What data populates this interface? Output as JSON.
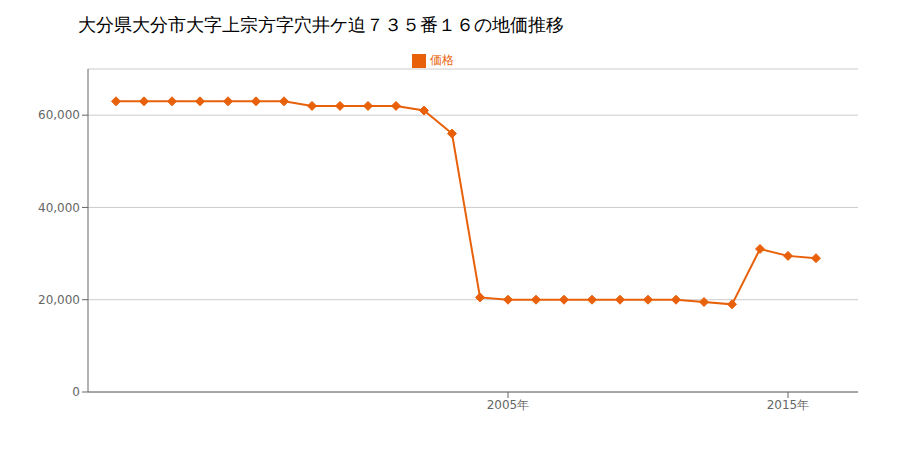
{
  "chart_data": {
    "type": "line",
    "title": "大分県大分市大字上宗方字穴井ケ迫７３５番１６の地価推移",
    "x": [
      1991,
      1992,
      1993,
      1994,
      1995,
      1996,
      1997,
      1998,
      1999,
      2000,
      2001,
      2002,
      2003,
      2004,
      2005,
      2006,
      2007,
      2008,
      2009,
      2010,
      2011,
      2012,
      2013,
      2014,
      2015,
      2016
    ],
    "series": [
      {
        "name": "価格",
        "color": "#E8610A",
        "marker": "diamond",
        "values": [
          63000,
          63000,
          63000,
          63000,
          63000,
          63000,
          63000,
          62000,
          62000,
          62000,
          62000,
          61000,
          56000,
          20500,
          20000,
          20000,
          20000,
          20000,
          20000,
          20000,
          20000,
          19500,
          19000,
          31000,
          29500,
          29000
        ]
      }
    ],
    "xlim": [
      1990,
      2017.5
    ],
    "xticks": [
      {
        "value": 2005,
        "label": "2005年"
      },
      {
        "value": 2015,
        "label": "2015年"
      }
    ],
    "ylim": [
      0,
      70000
    ],
    "yticks": [
      0,
      {
        "value": 20000,
        "label": "20,000"
      },
      {
        "value": 40000,
        "label": "40,000"
      },
      {
        "value": 60000,
        "label": "60,000"
      }
    ],
    "grid": "y",
    "legend": "top"
  }
}
